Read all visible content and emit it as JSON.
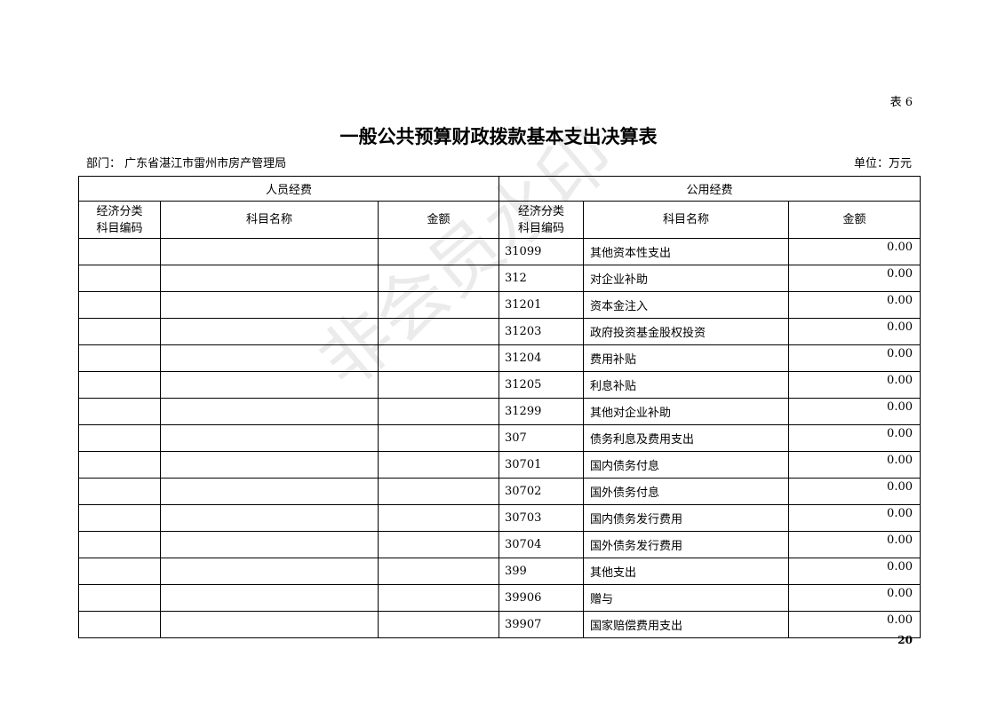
{
  "table_no": "表 6",
  "title": "一般公共预算财政拨款基本支出决算表",
  "department": "部门：  广东省湛江市雷州市房产管理局",
  "unit": "单位：万元",
  "page_number": "20",
  "watermark": "非会员水印",
  "sections": {
    "personnel": "人员经费",
    "public": "公用经费"
  },
  "columns": {
    "code": [
      "经济分类",
      "科目编码"
    ],
    "name": "科目名称",
    "amount": "金额"
  },
  "public_rows": [
    {
      "code": "31099",
      "name": "其他资本性支出",
      "amount": "0.00"
    },
    {
      "code": "312",
      "name": "对企业补助",
      "amount": "0.00"
    },
    {
      "code": "31201",
      "name": "资本金注入",
      "amount": "0.00"
    },
    {
      "code": "31203",
      "name": "政府投资基金股权投资",
      "amount": "0.00"
    },
    {
      "code": "31204",
      "name": "费用补贴",
      "amount": "0.00"
    },
    {
      "code": "31205",
      "name": "利息补贴",
      "amount": "0.00"
    },
    {
      "code": "31299",
      "name": "其他对企业补助",
      "amount": "0.00"
    },
    {
      "code": "307",
      "name": "债务利息及费用支出",
      "amount": "0.00"
    },
    {
      "code": "30701",
      "name": "国内债务付息",
      "amount": "0.00"
    },
    {
      "code": "30702",
      "name": "国外债务付息",
      "amount": "0.00"
    },
    {
      "code": "30703",
      "name": "国内债务发行费用",
      "amount": "0.00"
    },
    {
      "code": "30704",
      "name": "国外债务发行费用",
      "amount": "0.00"
    },
    {
      "code": "399",
      "name": "其他支出",
      "amount": "0.00"
    },
    {
      "code": "39906",
      "name": "赠与",
      "amount": "0.00"
    },
    {
      "code": "39907",
      "name": "国家赔偿费用支出",
      "amount": "0.00"
    }
  ]
}
